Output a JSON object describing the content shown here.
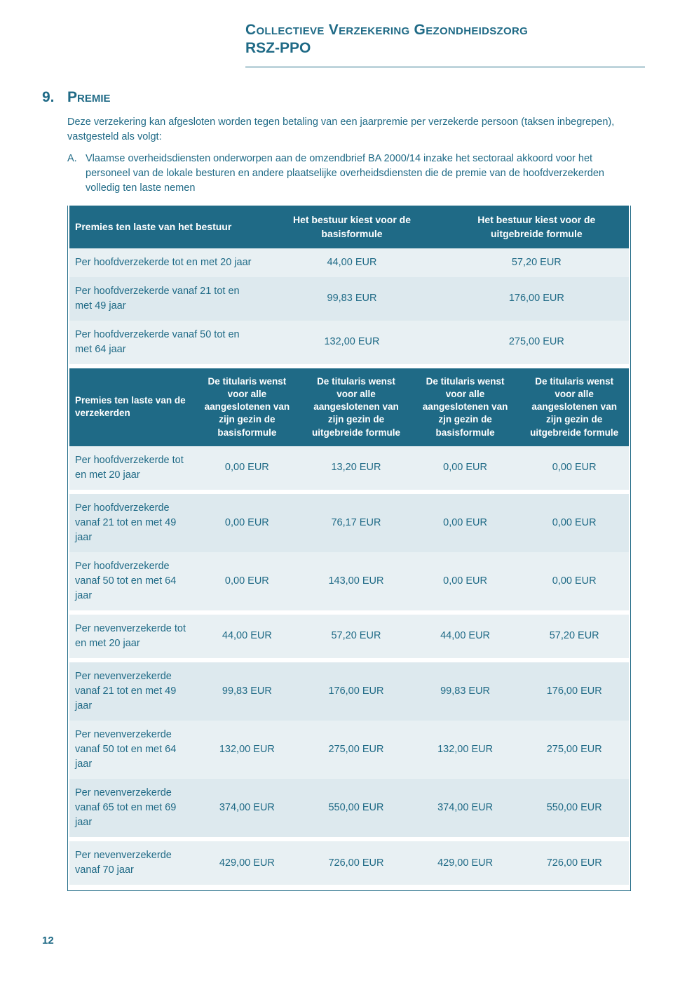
{
  "header": {
    "title": "Collectieve Verzekering Gezondheidszorg",
    "subtitle": "RSZ-PPO"
  },
  "section": {
    "number": "9.",
    "heading": "Premie",
    "intro": "Deze verzekering kan afgesloten worden tegen betaling van een jaarpremie per verzekerde persoon (taksen inbegrepen), vastgesteld als volgt:",
    "listMarker": "A.",
    "listText": "Vlaamse overheidsdiensten onderworpen aan de omzendbrief BA 2000/14 inzake het sectoraal akkoord voor het personeel van de lokale besturen en andere plaatselijke overheidsdiensten die de premie van de hoofdverzekerden volledig ten laste nemen"
  },
  "table1": {
    "headers": [
      "Premies ten laste van het bestuur",
      "Het bestuur kiest voor de basisformule",
      "Het bestuur kiest voor de uitgebreide formule"
    ],
    "rows": [
      {
        "label": "Per hoofdverzekerde tot en met 20 jaar",
        "c1": "44,00 EUR",
        "c2": "57,20 EUR",
        "alt": "a"
      },
      {
        "label": "Per hoofdverzekerde vanaf 21 tot en met 49 jaar",
        "c1": "99,83 EUR",
        "c2": "176,00 EUR",
        "alt": "b"
      },
      {
        "label": "Per hoofdverzekerde vanaf 50 tot en met 64 jaar",
        "c1": "132,00 EUR",
        "c2": "275,00 EUR",
        "alt": "a"
      }
    ]
  },
  "table2": {
    "headers": [
      "Premies ten laste van de verzekerden",
      "De titularis wenst voor alle aangeslotenen van zijn gezin de basisformule",
      "De titularis wenst voor alle aangeslotenen van zijn gezin de uitgebreide formule",
      "De titularis wenst voor alle aangeslotenen van zjn gezin de basisformule",
      "De titularis wenst voor alle aangeslotenen van zijn gezin de uitgebreide formule"
    ],
    "groups": [
      {
        "rows": [
          {
            "label": "Per hoofdverzekerde tot en met 20 jaar",
            "c": [
              "0,00 EUR",
              "13,20 EUR",
              "0,00 EUR",
              "0,00 EUR"
            ],
            "alt": "a"
          }
        ]
      },
      {
        "rows": [
          {
            "label": "Per hoofdverzekerde vanaf 21 tot en met 49 jaar",
            "c": [
              "0,00 EUR",
              "76,17 EUR",
              "0,00 EUR",
              "0,00 EUR"
            ],
            "alt": "b"
          },
          {
            "label": "Per hoofdverzekerde vanaf 50 tot en met 64 jaar",
            "c": [
              "0,00 EUR",
              "143,00 EUR",
              "0,00 EUR",
              "0,00 EUR"
            ],
            "alt": "a"
          }
        ]
      },
      {
        "rows": [
          {
            "label": "Per nevenverzekerde tot en met 20 jaar",
            "c": [
              "44,00 EUR",
              "57,20 EUR",
              "44,00 EUR",
              "57,20 EUR"
            ],
            "alt": "a"
          }
        ]
      },
      {
        "rows": [
          {
            "label": "Per nevenverzekerde vanaf 21 tot en met 49 jaar",
            "c": [
              "99,83 EUR",
              "176,00 EUR",
              "99,83 EUR",
              "176,00 EUR"
            ],
            "alt": "b"
          },
          {
            "label": "Per nevenverzekerde vanaf 50 tot en met 64 jaar",
            "c": [
              "132,00 EUR",
              "275,00 EUR",
              "132,00 EUR",
              "275,00 EUR"
            ],
            "alt": "a"
          },
          {
            "label": "Per nevenverzekerde vanaf 65 tot en met 69 jaar",
            "c": [
              "374,00 EUR",
              "550,00 EUR",
              "374,00 EUR",
              "550,00 EUR"
            ],
            "alt": "b"
          }
        ]
      },
      {
        "rows": [
          {
            "label": "Per nevenverzekerde vanaf 70 jaar",
            "c": [
              "429,00 EUR",
              "726,00 EUR",
              "429,00 EUR",
              "726,00 EUR"
            ],
            "alt": "a"
          }
        ]
      }
    ]
  },
  "pageNumber": "12",
  "colors": {
    "brand": "#1f6a86",
    "rowA": "#e8f0f3",
    "rowB": "#dde9ee",
    "white": "#ffffff"
  }
}
